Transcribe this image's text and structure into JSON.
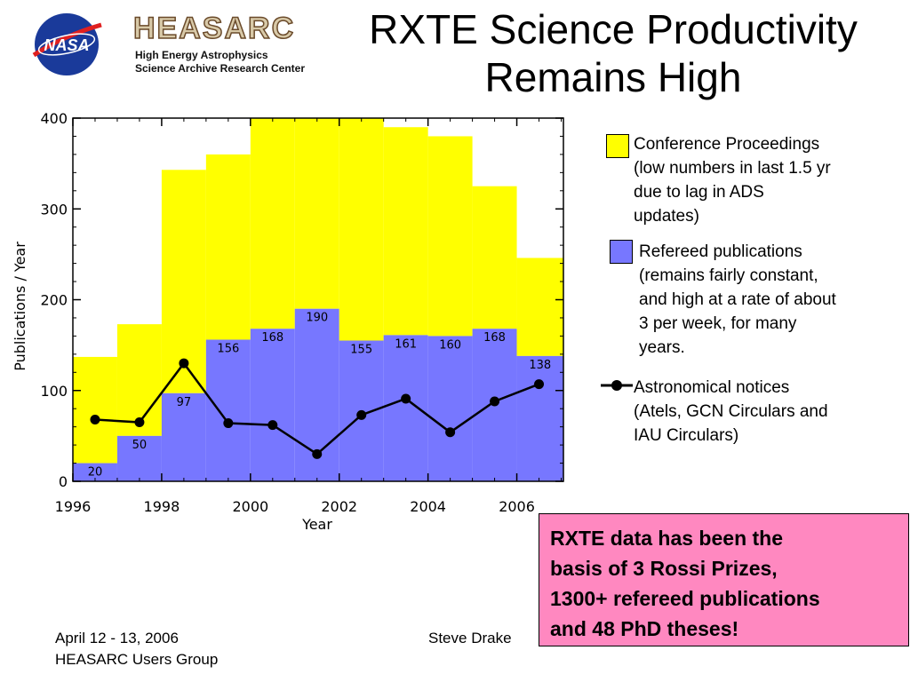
{
  "header": {
    "nasa_logo_text": "NASA",
    "heasarc_name": "HEASARC",
    "heasarc_line1": "High Energy Astrophysics",
    "heasarc_line2": "Science Archive Research Center",
    "title_line1": "RXTE Science Productivity",
    "title_line2": "Remains High"
  },
  "chart_data": {
    "type": "area",
    "xlabel": "Year",
    "ylabel": "Publications / Year",
    "xlim": [
      1996,
      2007.05
    ],
    "ylim": [
      0,
      400
    ],
    "x_ticks": [
      "1996",
      "1998",
      "2000",
      "2002",
      "2004",
      "2006"
    ],
    "y_ticks": [
      "0",
      "100",
      "200",
      "300",
      "400"
    ],
    "bins": [
      {
        "start": 1996,
        "end": 1997,
        "refereed": 20,
        "total": 137
      },
      {
        "start": 1997,
        "end": 1998,
        "refereed": 50,
        "total": 173
      },
      {
        "start": 1998,
        "end": 1999,
        "refereed": 97,
        "total": 343
      },
      {
        "start": 1999,
        "end": 2000,
        "refereed": 156,
        "total": 360
      },
      {
        "start": 2000,
        "end": 2001,
        "refereed": 168,
        "total": 400
      },
      {
        "start": 2001,
        "end": 2002,
        "refereed": 190,
        "total": 400
      },
      {
        "start": 2002,
        "end": 2003,
        "refereed": 155,
        "total": 400
      },
      {
        "start": 2003,
        "end": 2004,
        "refereed": 161,
        "total": 390
      },
      {
        "start": 2004,
        "end": 2005,
        "refereed": 160,
        "total": 380
      },
      {
        "start": 2005,
        "end": 2006,
        "refereed": 168,
        "total": 325
      },
      {
        "start": 2006,
        "end": 2007.05,
        "refereed": 138,
        "total": 246
      }
    ],
    "bar_labels": [
      "20",
      "50",
      "97",
      "156",
      "168",
      "190",
      "155",
      "161",
      "160",
      "168",
      "138"
    ],
    "notices_series": {
      "x": [
        1996.5,
        1997.5,
        1998.5,
        1999.5,
        2000.5,
        2001.5,
        2002.5,
        2003.5,
        2004.5,
        2005.5,
        2006.5
      ],
      "y": [
        68,
        65,
        130,
        64,
        62,
        30,
        73,
        91,
        54,
        88,
        107
      ]
    },
    "colors": {
      "conference": "#ffff00",
      "refereed": "#7777ff",
      "notices": "#000000"
    },
    "legend": {
      "placement": "right",
      "conference": [
        "Conference Proceedings",
        "(low numbers in last 1.5 yr",
        "due to lag in ADS",
        "updates)"
      ],
      "refereed": [
        "Refereed publications",
        "(remains fairly constant,",
        "and high at a rate of about",
        "3 per week, for many",
        "years."
      ],
      "notices": [
        "Astronomical notices",
        "(Atels, GCN Circulars and",
        "IAU Circulars)"
      ]
    }
  },
  "callout": {
    "lines": [
      "RXTE data has been the",
      "basis of 3 Rossi Prizes,",
      "1300+ refereed publications",
      "and 48 PhD theses!"
    ]
  },
  "footer": {
    "date": "April 12 - 13, 2006",
    "group": "HEASARC Users Group",
    "author": "Steve Drake"
  }
}
